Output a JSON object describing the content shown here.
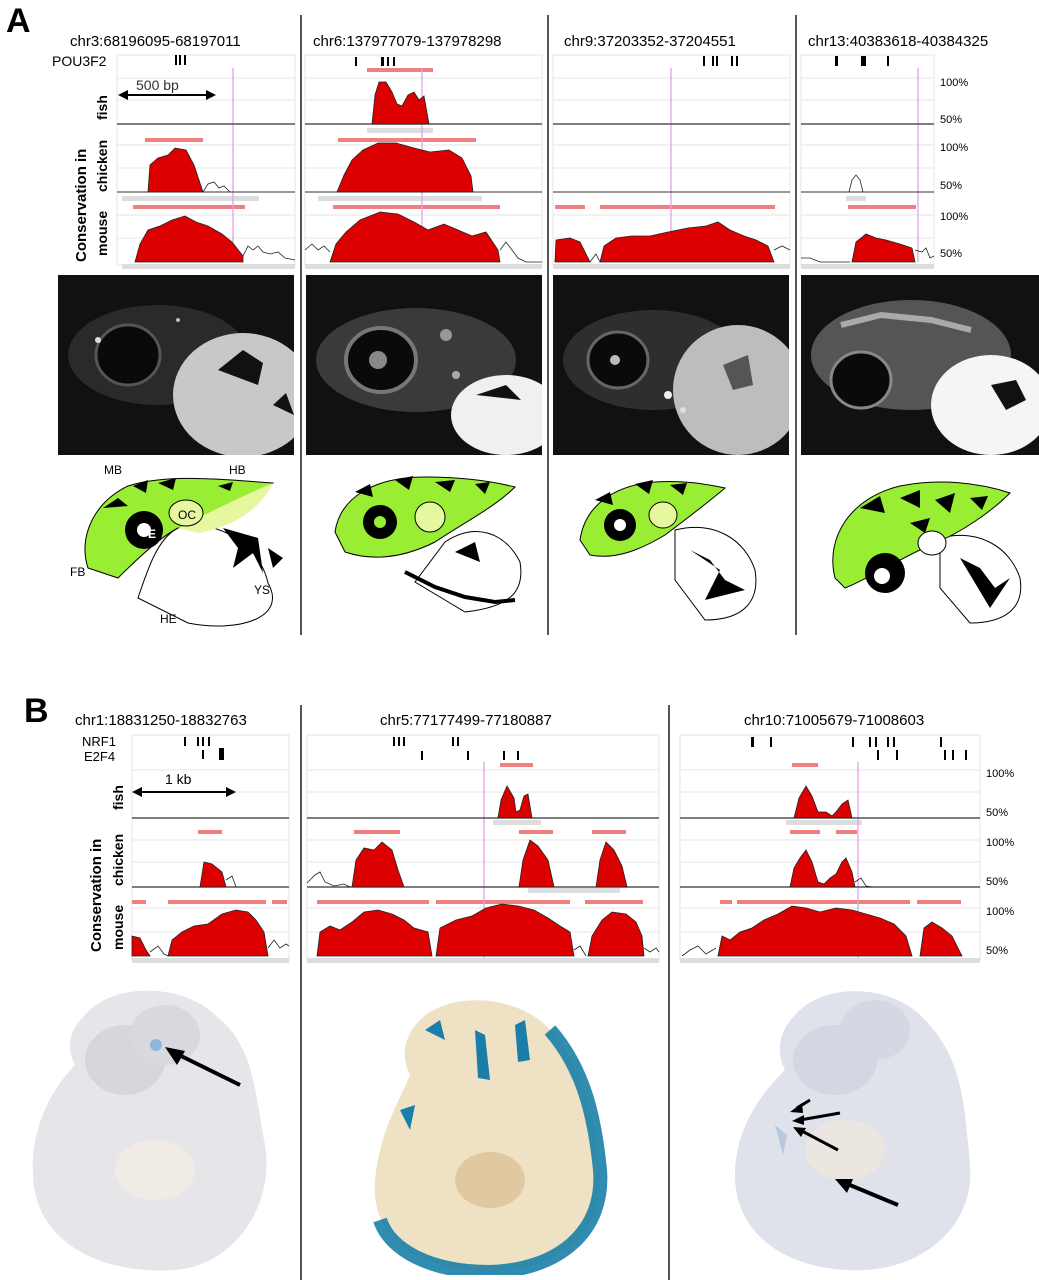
{
  "panels": {
    "A": {
      "label": "A"
    },
    "B": {
      "label": "B"
    }
  },
  "panelA": {
    "tf_label": "POU3F2",
    "scale_label": "500 bp",
    "conservation_label": "Conservation in",
    "species": [
      "fish",
      "chicken",
      "mouse"
    ],
    "pct_high": "100%",
    "pct_low": "50%",
    "columns": [
      {
        "coord": "chr3:68196095-68197011"
      },
      {
        "coord": "chr6:137977079-137978298"
      },
      {
        "coord": "chr9:37203352-37204551"
      },
      {
        "coord": "chr13:40383618-40384325"
      }
    ],
    "anatomy": {
      "MB": "MB",
      "HB": "HB",
      "OC": "OC",
      "E": "E",
      "FB": "FB",
      "HE": "HE",
      "YS": "YS"
    }
  },
  "panelB": {
    "tf_labels": [
      "NRF1",
      "E2F4"
    ],
    "scale_label": "1 kb",
    "conservation_label": "Conservation in",
    "species": [
      "fish",
      "chicken",
      "mouse"
    ],
    "pct_high": "100%",
    "pct_low": "50%",
    "columns": [
      {
        "coord": "chr1:18831250-18832763"
      },
      {
        "coord": "chr5:77177499-77180887"
      },
      {
        "coord": "chr10:71005679-71008603"
      }
    ]
  },
  "colors": {
    "conservation_fill": "#dd0000",
    "highlight_bar": "#f08080",
    "zebrafish_green": "#99ee33",
    "xgal_blue": "#1a7fa8"
  }
}
